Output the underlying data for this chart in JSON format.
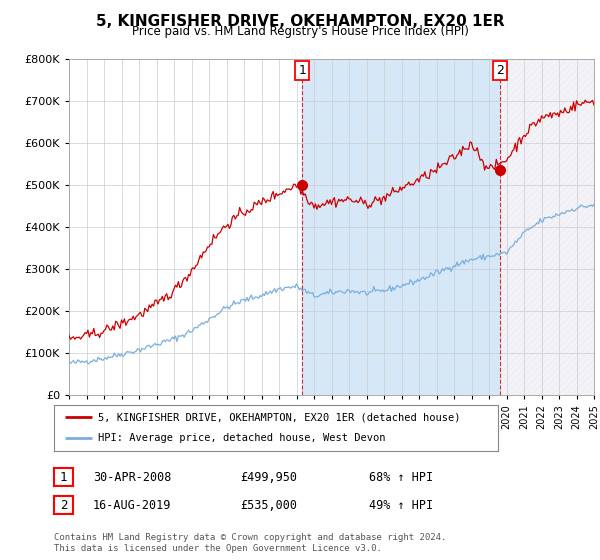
{
  "title": "5, KINGFISHER DRIVE, OKEHAMPTON, EX20 1ER",
  "subtitle": "Price paid vs. HM Land Registry's House Price Index (HPI)",
  "ylim": [
    0,
    800000
  ],
  "yticks": [
    0,
    100000,
    200000,
    300000,
    400000,
    500000,
    600000,
    700000,
    800000
  ],
  "hpi_color": "#7aafe0",
  "hpi_fill_color": "#d6e8f7",
  "price_color": "#cc0000",
  "sale1_x": 2008.33,
  "sale1_y": 499950,
  "sale1_label": "1",
  "sale1_date": "30-APR-2008",
  "sale1_price": "£499,950",
  "sale1_hpi": "68% ↑ HPI",
  "sale2_x": 2019.62,
  "sale2_y": 535000,
  "sale2_label": "2",
  "sale2_date": "16-AUG-2019",
  "sale2_price": "£535,000",
  "sale2_hpi": "49% ↑ HPI",
  "legend_line1": "5, KINGFISHER DRIVE, OKEHAMPTON, EX20 1ER (detached house)",
  "legend_line2": "HPI: Average price, detached house, West Devon",
  "footer": "Contains HM Land Registry data © Crown copyright and database right 2024.\nThis data is licensed under the Open Government Licence v3.0.",
  "background_color": "#ffffff",
  "grid_color": "#cccccc",
  "xmin": 1995,
  "xmax": 2025
}
